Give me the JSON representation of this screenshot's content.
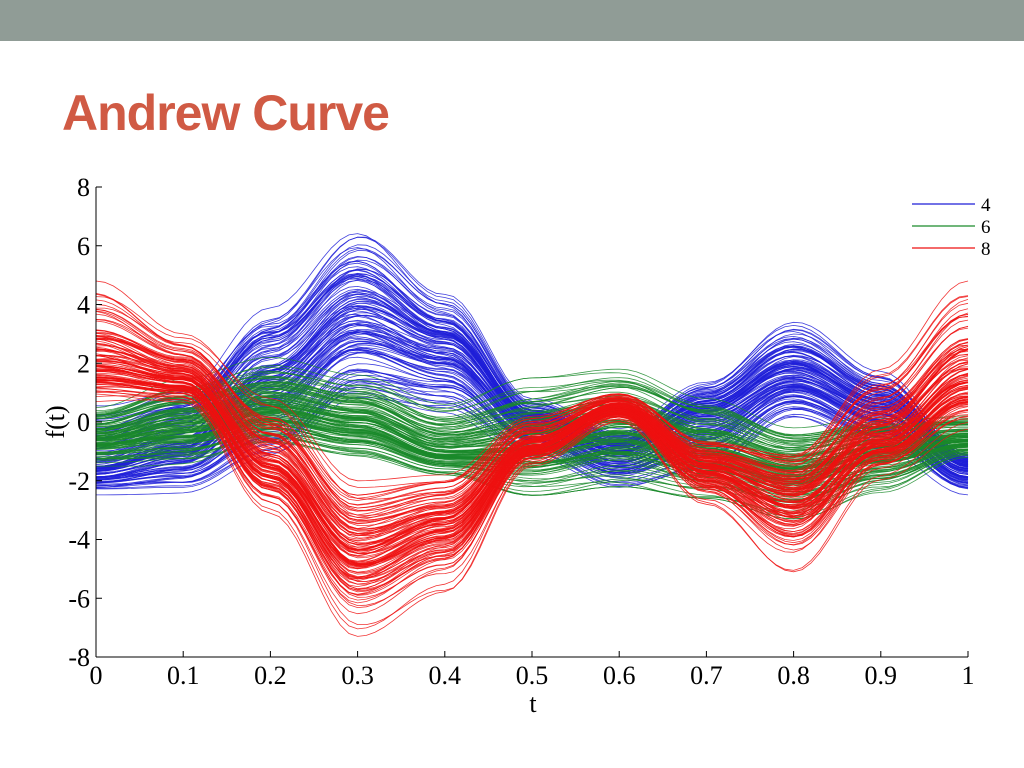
{
  "slide": {
    "title": "Andrew Curve",
    "header_bar_color": "#909c96",
    "title_color": "#d05a44"
  },
  "chart_data": {
    "type": "line",
    "title": "",
    "xlabel": "t",
    "ylabel": "f(t)",
    "xlim": [
      0,
      1
    ],
    "ylim": [
      -8,
      8
    ],
    "x_ticks": [
      "0",
      "0.1",
      "0.2",
      "0.3",
      "0.4",
      "0.5",
      "0.6",
      "0.7",
      "0.8",
      "0.9",
      "1"
    ],
    "y_ticks": [
      "8",
      "6",
      "4",
      "2",
      "0",
      "-2",
      "-4",
      "-6",
      "-8"
    ],
    "grid": false,
    "legend_position": "top-right",
    "curve_count_per_series": 120,
    "series": [
      {
        "name": "4",
        "color": "#1f1fd8",
        "envelope": {
          "t": [
            0,
            0.1,
            0.2,
            0.3,
            0.4,
            0.5,
            0.6,
            0.7,
            0.8,
            0.9,
            1
          ],
          "upper": [
            0.8,
            1.5,
            4.3,
            7.0,
            4.5,
            0.8,
            -0.2,
            1.5,
            3.6,
            1.8,
            -1.0
          ],
          "lower": [
            -2.5,
            -2.5,
            -1.5,
            0.5,
            0.2,
            -1.2,
            -2.3,
            -1.8,
            0.0,
            -1.0,
            -2.5
          ],
          "typical": [
            -1.5,
            -0.8,
            1.5,
            3.5,
            2.5,
            0.0,
            -1.0,
            0.3,
            1.6,
            0.5,
            -1.5
          ]
        }
      },
      {
        "name": "6",
        "color": "#1a8a2a",
        "envelope": {
          "t": [
            0,
            0.1,
            0.2,
            0.3,
            0.4,
            0.5,
            0.6,
            0.7,
            0.8,
            0.9,
            1
          ],
          "upper": [
            0.6,
            1.5,
            2.2,
            1.6,
            0.6,
            1.5,
            1.8,
            0.8,
            -0.2,
            0.2,
            0.3
          ],
          "lower": [
            -1.5,
            -1.5,
            -0.8,
            -1.2,
            -1.8,
            -2.5,
            -2.2,
            -2.6,
            -3.3,
            -2.4,
            -1.2
          ],
          "typical": [
            -0.5,
            0.0,
            0.5,
            0.0,
            -1.0,
            -0.8,
            -0.2,
            -1.0,
            -1.6,
            -1.0,
            -0.6
          ]
        }
      },
      {
        "name": "8",
        "color": "#ee1111",
        "envelope": {
          "t": [
            0,
            0.1,
            0.2,
            0.3,
            0.4,
            0.5,
            0.6,
            0.7,
            0.8,
            0.9,
            1
          ],
          "upper": [
            4.8,
            3.0,
            0.8,
            -2.0,
            -1.8,
            0.2,
            1.0,
            -0.6,
            -1.0,
            1.8,
            4.8
          ],
          "lower": [
            0.5,
            0.5,
            -3.2,
            -7.3,
            -5.8,
            -1.5,
            0.0,
            -2.8,
            -5.1,
            -2.0,
            -0.5
          ],
          "typical": [
            2.0,
            1.5,
            -1.5,
            -4.5,
            -3.5,
            -0.8,
            0.5,
            -1.5,
            -2.5,
            -0.5,
            1.5
          ]
        }
      }
    ]
  }
}
